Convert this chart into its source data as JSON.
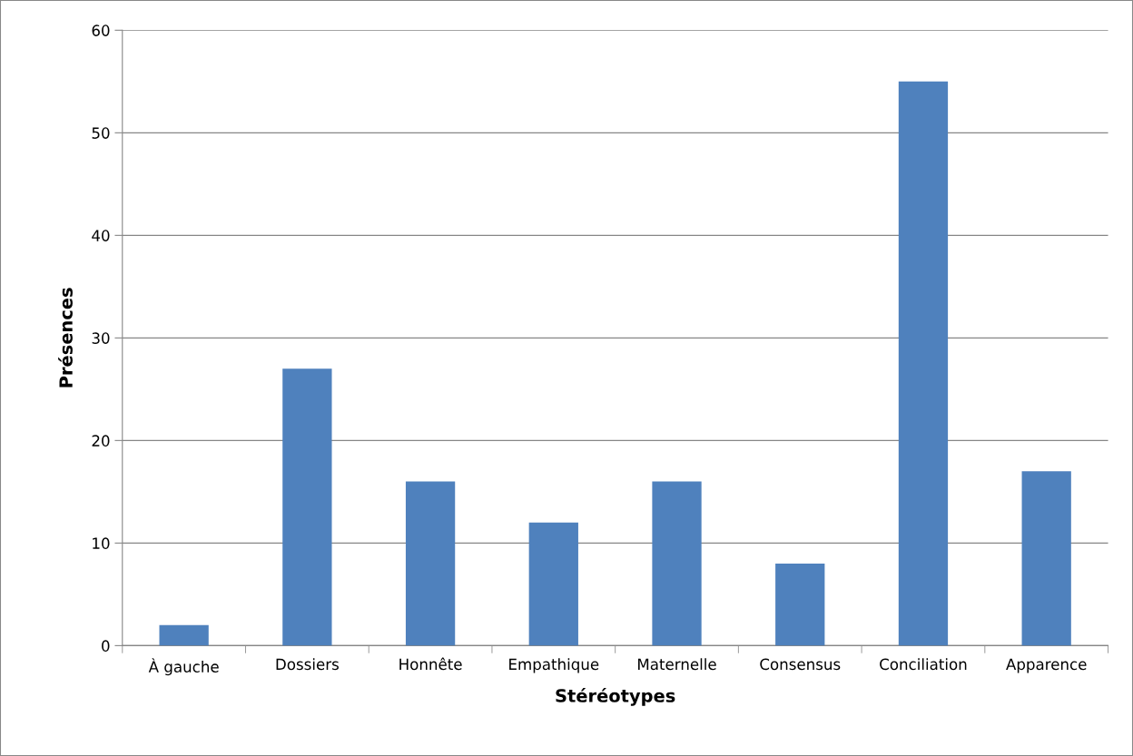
{
  "chart_data": {
    "type": "bar",
    "xlabel": "Stéréotypes",
    "ylabel": "Présences",
    "categories": [
      "À gauche",
      "Dossiers",
      "Honnête",
      "Empathique",
      "Maternelle",
      "Consensus",
      "Conciliation",
      "Apparence"
    ],
    "values": [
      2,
      27,
      16,
      12,
      16,
      8,
      55,
      17
    ],
    "color": "#4f81bd",
    "ylim": [
      0,
      60
    ],
    "yticks": [
      0,
      10,
      20,
      30,
      40,
      50,
      60
    ],
    "grid": "y",
    "legend": false
  }
}
